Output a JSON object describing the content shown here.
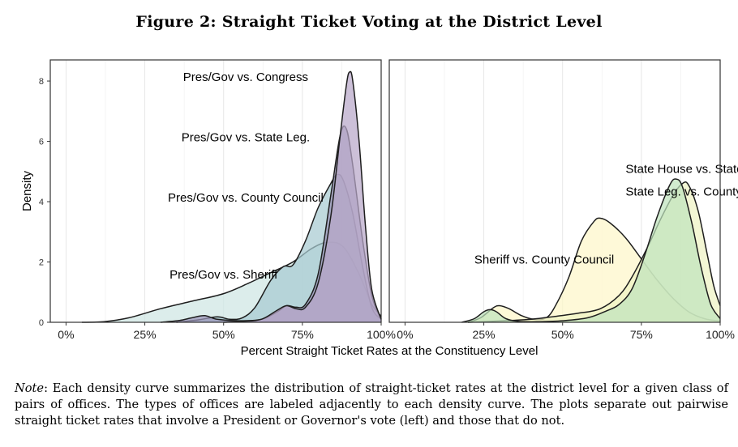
{
  "figure_title": "Figure 2: Straight Ticket Voting at the District Level",
  "note": {
    "label": "Note",
    "text": ": Each density curve summarizes the distribution of straight-ticket rates at the district level for a given class of pairs of offices. The types of offices are labeled adjacently to each density curve. The plots separate out pairwise straight ticket rates that involve a President or Governor's vote (left) and those that do not."
  },
  "chart_data": {
    "type": "area",
    "xlabel": "Percent Straight Ticket Rates at the Constituency Level",
    "ylabel": "Density",
    "xlim": [
      -0.05,
      1.0
    ],
    "ylim": [
      0,
      8.7
    ],
    "x_ticks": [
      0,
      0.25,
      0.5,
      0.75,
      1.0
    ],
    "x_tick_labels": [
      "0%",
      "25%",
      "50%",
      "75%",
      "100%"
    ],
    "y_ticks": [
      0,
      2,
      4,
      6,
      8
    ],
    "y_tick_labels": [
      "0",
      "2",
      "4",
      "6",
      "8"
    ],
    "grid": true,
    "legend": "none",
    "panels": [
      {
        "name": "left",
        "series": [
          {
            "name": "Pres/Gov vs. Sheriff",
            "color": "#cfe6e3",
            "points": [
              [
                0.05,
                0
              ],
              [
                0.12,
                0.02
              ],
              [
                0.2,
                0.15
              ],
              [
                0.3,
                0.45
              ],
              [
                0.4,
                0.7
              ],
              [
                0.5,
                0.95
              ],
              [
                0.58,
                1.3
              ],
              [
                0.65,
                1.65
              ],
              [
                0.72,
                2.0
              ],
              [
                0.78,
                2.45
              ],
              [
                0.83,
                2.65
              ],
              [
                0.88,
                2.5
              ],
              [
                0.93,
                1.6
              ],
              [
                0.97,
                0.6
              ],
              [
                1.0,
                0.2
              ]
            ],
            "label_x": 0.5,
            "label_y": 1.45
          },
          {
            "name": "Pres/Gov vs. County Council",
            "color": "#a7cbd1",
            "points": [
              [
                0.35,
                0
              ],
              [
                0.42,
                0.08
              ],
              [
                0.48,
                0.18
              ],
              [
                0.52,
                0.1
              ],
              [
                0.56,
                0.15
              ],
              [
                0.6,
                0.5
              ],
              [
                0.65,
                1.4
              ],
              [
                0.69,
                1.85
              ],
              [
                0.72,
                1.9
              ],
              [
                0.76,
                2.7
              ],
              [
                0.8,
                3.8
              ],
              [
                0.84,
                4.6
              ],
              [
                0.86,
                4.9
              ],
              [
                0.88,
                4.7
              ],
              [
                0.91,
                3.6
              ],
              [
                0.94,
                1.9
              ],
              [
                0.97,
                0.5
              ],
              [
                1.0,
                0.1
              ]
            ],
            "label_x": 0.57,
            "label_y": 4.0
          },
          {
            "name": "Pres/Gov vs. State Leg.",
            "color": "#9b94b8",
            "points": [
              [
                0.3,
                0
              ],
              [
                0.36,
                0.06
              ],
              [
                0.4,
                0.15
              ],
              [
                0.44,
                0.22
              ],
              [
                0.48,
                0.1
              ],
              [
                0.55,
                0.05
              ],
              [
                0.62,
                0.1
              ],
              [
                0.67,
                0.35
              ],
              [
                0.7,
                0.55
              ],
              [
                0.73,
                0.5
              ],
              [
                0.76,
                0.6
              ],
              [
                0.8,
                1.6
              ],
              [
                0.84,
                4.2
              ],
              [
                0.87,
                6.2
              ],
              [
                0.89,
                6.4
              ],
              [
                0.91,
                5.2
              ],
              [
                0.94,
                2.8
              ],
              [
                0.97,
                0.9
              ],
              [
                1.0,
                0.1
              ]
            ],
            "label_x": 0.57,
            "label_y": 6.0
          },
          {
            "name": "Pres/Gov vs. Congress",
            "color": "#b8a7c9",
            "points": [
              [
                0.5,
                0
              ],
              [
                0.56,
                0.03
              ],
              [
                0.62,
                0.1
              ],
              [
                0.67,
                0.4
              ],
              [
                0.7,
                0.55
              ],
              [
                0.73,
                0.45
              ],
              [
                0.76,
                0.5
              ],
              [
                0.8,
                1.3
              ],
              [
                0.84,
                3.5
              ],
              [
                0.87,
                6.2
              ],
              [
                0.89,
                7.9
              ],
              [
                0.9,
                8.3
              ],
              [
                0.91,
                8.0
              ],
              [
                0.93,
                6.0
              ],
              [
                0.95,
                3.2
              ],
              [
                0.97,
                1.1
              ],
              [
                1.0,
                0.1
              ]
            ],
            "label_x": 0.57,
            "label_y": 8.0
          }
        ]
      },
      {
        "name": "right",
        "series": [
          {
            "name": "Sheriff vs. County Council",
            "color": "#fdf7c9",
            "points": [
              [
                0.2,
                0
              ],
              [
                0.24,
                0.15
              ],
              [
                0.28,
                0.48
              ],
              [
                0.3,
                0.55
              ],
              [
                0.33,
                0.45
              ],
              [
                0.37,
                0.22
              ],
              [
                0.41,
                0.1
              ],
              [
                0.45,
                0.16
              ],
              [
                0.48,
                0.6
              ],
              [
                0.52,
                1.5
              ],
              [
                0.56,
                2.7
              ],
              [
                0.6,
                3.35
              ],
              [
                0.62,
                3.45
              ],
              [
                0.65,
                3.3
              ],
              [
                0.7,
                2.8
              ],
              [
                0.75,
                2.1
              ],
              [
                0.8,
                1.4
              ],
              [
                0.85,
                0.8
              ],
              [
                0.9,
                0.35
              ],
              [
                0.95,
                0.12
              ],
              [
                1.0,
                0.04
              ]
            ],
            "label_x": 0.22,
            "label_y": 1.95
          },
          {
            "name": "State Leg. vs. County Council",
            "color": "#eef2c4",
            "points": [
              [
                0.2,
                0
              ],
              [
                0.25,
                0.02
              ],
              [
                0.32,
                0.05
              ],
              [
                0.4,
                0.1
              ],
              [
                0.48,
                0.2
              ],
              [
                0.55,
                0.3
              ],
              [
                0.62,
                0.45
              ],
              [
                0.68,
                0.9
              ],
              [
                0.72,
                1.5
              ],
              [
                0.77,
                2.5
              ],
              [
                0.81,
                3.4
              ],
              [
                0.85,
                4.2
              ],
              [
                0.88,
                4.6
              ],
              [
                0.9,
                4.55
              ],
              [
                0.93,
                3.7
              ],
              [
                0.96,
                2.2
              ],
              [
                0.98,
                1.2
              ],
              [
                1.0,
                0.55
              ]
            ],
            "label_x": 0.7,
            "label_y": 4.2
          },
          {
            "name": "State House vs. State Senate",
            "color": "#bfe3bd",
            "points": [
              [
                0.18,
                0
              ],
              [
                0.22,
                0.12
              ],
              [
                0.25,
                0.35
              ],
              [
                0.27,
                0.42
              ],
              [
                0.29,
                0.35
              ],
              [
                0.32,
                0.12
              ],
              [
                0.36,
                0.03
              ],
              [
                0.42,
                0.02
              ],
              [
                0.5,
                0.05
              ],
              [
                0.58,
                0.15
              ],
              [
                0.64,
                0.38
              ],
              [
                0.68,
                0.6
              ],
              [
                0.72,
                1.1
              ],
              [
                0.76,
                2.2
              ],
              [
                0.8,
                3.5
              ],
              [
                0.84,
                4.55
              ],
              [
                0.86,
                4.75
              ],
              [
                0.88,
                4.5
              ],
              [
                0.91,
                3.3
              ],
              [
                0.94,
                1.8
              ],
              [
                0.97,
                0.6
              ],
              [
                1.0,
                0.12
              ]
            ],
            "label_x": 0.7,
            "label_y": 4.95
          }
        ]
      }
    ]
  }
}
